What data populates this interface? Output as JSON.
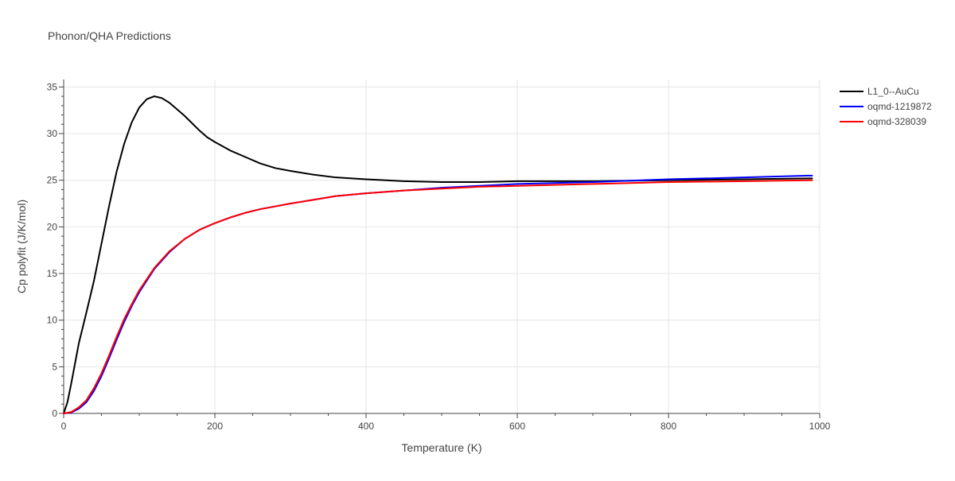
{
  "chart_data": {
    "type": "line",
    "title": "Phonon/QHA Predictions",
    "xlabel": "Temperature (K)",
    "ylabel": "Cp polyfit (J/K/mol)",
    "xlim": [
      0,
      1000
    ],
    "ylim": [
      0,
      35.8
    ],
    "xticks": [
      0,
      200,
      400,
      600,
      800,
      1000
    ],
    "yticks": [
      0,
      5,
      10,
      15,
      20,
      25,
      30,
      35
    ],
    "grid": true,
    "legend_position": "top-right",
    "series": [
      {
        "name": "L1_0--AuCu",
        "color": "#000000",
        "x": [
          0,
          5,
          10,
          20,
          30,
          40,
          50,
          60,
          70,
          80,
          90,
          100,
          110,
          120,
          130,
          140,
          150,
          160,
          170,
          180,
          190,
          200,
          220,
          240,
          260,
          280,
          300,
          330,
          360,
          400,
          450,
          500,
          550,
          600,
          700,
          800,
          900,
          990
        ],
        "y": [
          0,
          1.2,
          3.2,
          7.5,
          10.8,
          14.2,
          18.2,
          22.2,
          25.9,
          28.9,
          31.2,
          32.8,
          33.7,
          34.0,
          33.8,
          33.3,
          32.6,
          31.9,
          31.1,
          30.3,
          29.6,
          29.1,
          28.2,
          27.5,
          26.8,
          26.3,
          26.0,
          25.6,
          25.3,
          25.1,
          24.9,
          24.8,
          24.8,
          24.9,
          24.9,
          25.0,
          25.1,
          25.2
        ]
      },
      {
        "name": "oqmd-1219872",
        "color": "#0000ff",
        "x": [
          0,
          10,
          20,
          30,
          40,
          50,
          60,
          70,
          80,
          90,
          100,
          120,
          140,
          160,
          180,
          200,
          220,
          240,
          260,
          280,
          300,
          330,
          360,
          400,
          450,
          500,
          550,
          600,
          700,
          800,
          900,
          990
        ],
        "y": [
          0,
          0.1,
          0.5,
          1.2,
          2.4,
          4.0,
          5.9,
          7.9,
          9.8,
          11.5,
          13.0,
          15.5,
          17.3,
          18.7,
          19.7,
          20.4,
          21.0,
          21.5,
          21.9,
          22.2,
          22.5,
          22.9,
          23.3,
          23.6,
          23.9,
          24.2,
          24.4,
          24.6,
          24.8,
          25.1,
          25.3,
          25.5
        ]
      },
      {
        "name": "oqmd-328039",
        "color": "#ff0000",
        "x": [
          0,
          10,
          20,
          30,
          40,
          50,
          60,
          70,
          80,
          90,
          100,
          120,
          140,
          160,
          180,
          200,
          220,
          240,
          260,
          280,
          300,
          330,
          360,
          400,
          450,
          500,
          550,
          600,
          700,
          800,
          900,
          990
        ],
        "y": [
          0,
          0.15,
          0.65,
          1.4,
          2.7,
          4.3,
          6.2,
          8.2,
          10.1,
          11.7,
          13.2,
          15.6,
          17.4,
          18.7,
          19.7,
          20.4,
          21.0,
          21.5,
          21.9,
          22.2,
          22.5,
          22.9,
          23.3,
          23.6,
          23.9,
          24.1,
          24.3,
          24.4,
          24.6,
          24.8,
          24.9,
          25.0
        ]
      }
    ]
  }
}
